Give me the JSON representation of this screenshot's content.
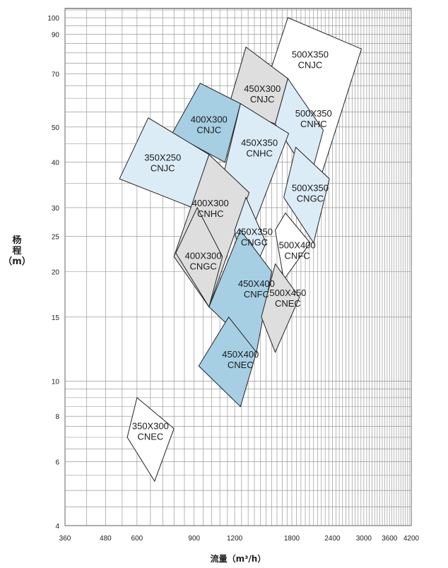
{
  "chart_data": {
    "type": "area",
    "title": "",
    "xlabel": "流量（m³/h）",
    "ylabel_chars": [
      "杨",
      "程",
      "（m）"
    ],
    "x_scale": "log",
    "y_scale": "log",
    "xlim": [
      360,
      4200
    ],
    "ylim": [
      4,
      106
    ],
    "x_tick_labels": [
      "360",
      "480",
      "600",
      "900",
      "1200",
      "1800",
      "2400",
      "3000",
      "3600",
      "4200"
    ],
    "y_tick_labels": [
      "4",
      "6",
      "8",
      "10",
      "15",
      "20",
      "25",
      "30",
      "40",
      "50",
      "70",
      "90",
      "100"
    ],
    "grid": true,
    "colors": {
      "white": "#ffffff",
      "light_blue": "#dcecf7",
      "mid_blue": "#a6cfe3",
      "gray": "#dedede"
    },
    "series": [
      {
        "name": "500X350 CNJC",
        "color": "white",
        "label": [
          2050,
          77
        ],
        "poly": [
          [
            1750,
            100
          ],
          [
            2950,
            82
          ],
          [
            2200,
            36
          ],
          [
            1550,
            72
          ]
        ]
      },
      {
        "name": "450X300 CNJC",
        "color": "gray",
        "label": [
          1460,
          62
        ],
        "poly": [
          [
            1300,
            83
          ],
          [
            1750,
            68
          ],
          [
            1600,
            51
          ],
          [
            1150,
            57
          ]
        ]
      },
      {
        "name": "500X350 CNHC",
        "color": "light_blue",
        "label": [
          2100,
          53
        ],
        "poly": [
          [
            1750,
            68
          ],
          [
            2250,
            49
          ],
          [
            2050,
            36
          ],
          [
            1600,
            51
          ]
        ]
      },
      {
        "name": "400X300 CNJC",
        "color": "mid_blue",
        "label": [
          1000,
          51
        ],
        "poly": [
          [
            940,
            66
          ],
          [
            1250,
            58
          ],
          [
            1120,
            40
          ],
          [
            770,
            48
          ]
        ]
      },
      {
        "name": "450X350 CNHC",
        "color": "light_blue",
        "label": [
          1430,
          44
        ],
        "poly": [
          [
            1250,
            58
          ],
          [
            1760,
            48
          ],
          [
            1310,
            24
          ],
          [
            1100,
            36
          ]
        ]
      },
      {
        "name": "350X250 CNJC",
        "color": "light_blue",
        "label": [
          720,
          40
        ],
        "poly": [
          [
            650,
            53
          ],
          [
            1000,
            42
          ],
          [
            890,
            30
          ],
          [
            530,
            36
          ]
        ]
      },
      {
        "name": "500X350 CNGC",
        "color": "light_blue",
        "label": [
          2050,
          33
        ],
        "poly": [
          [
            1850,
            44
          ],
          [
            2350,
            36
          ],
          [
            2100,
            24
          ],
          [
            1700,
            32
          ]
        ]
      },
      {
        "name": "400X300 CNHC",
        "color": "gray",
        "label": [
          1010,
          30
        ],
        "poly": [
          [
            1000,
            42
          ],
          [
            1330,
            33
          ],
          [
            1000,
            16
          ],
          [
            780,
            22
          ]
        ]
      },
      {
        "name": "450X350 CNGC",
        "color": "light_blue",
        "label": [
          1380,
          25
        ],
        "poly": [
          [
            1300,
            32
          ],
          [
            1500,
            24
          ],
          [
            1300,
            18
          ],
          [
            1200,
            26
          ]
        ]
      },
      {
        "name": "500X400 CNFC",
        "color": "white",
        "label": [
          1870,
          23
        ],
        "poly": [
          [
            1720,
            29
          ],
          [
            2050,
            24
          ],
          [
            1700,
            19
          ],
          [
            1600,
            26
          ]
        ]
      },
      {
        "name": "400X300 CNGC",
        "color": "gray",
        "label": [
          960,
          21.5
        ],
        "poly": [
          [
            920,
            30
          ],
          [
            1100,
            22
          ],
          [
            1000,
            16
          ],
          [
            790,
            22.5
          ]
        ]
      },
      {
        "name": "450X400 CNFC",
        "color": "mid_blue",
        "label": [
          1400,
          18
        ],
        "poly": [
          [
            1250,
            26
          ],
          [
            1560,
            20
          ],
          [
            1400,
            12
          ],
          [
            1000,
            16
          ]
        ]
      },
      {
        "name": "500X450 CNEC",
        "color": "gray",
        "label": [
          1750,
          17
        ],
        "poly": [
          [
            1600,
            21
          ],
          [
            1900,
            17
          ],
          [
            1600,
            12
          ],
          [
            1450,
            15
          ]
        ]
      },
      {
        "name": "450X400 CNEC",
        "color": "mid_blue",
        "label": [
          1250,
          11.5
        ],
        "poly": [
          [
            1150,
            15
          ],
          [
            1400,
            12
          ],
          [
            1250,
            8.5
          ],
          [
            930,
            11
          ]
        ]
      },
      {
        "name": "350X300 CNEC",
        "color": "white",
        "label": [
          660,
          7.3
        ],
        "poly": [
          [
            600,
            9
          ],
          [
            780,
            7.4
          ],
          [
            680,
            5.3
          ],
          [
            560,
            7
          ]
        ]
      }
    ]
  }
}
